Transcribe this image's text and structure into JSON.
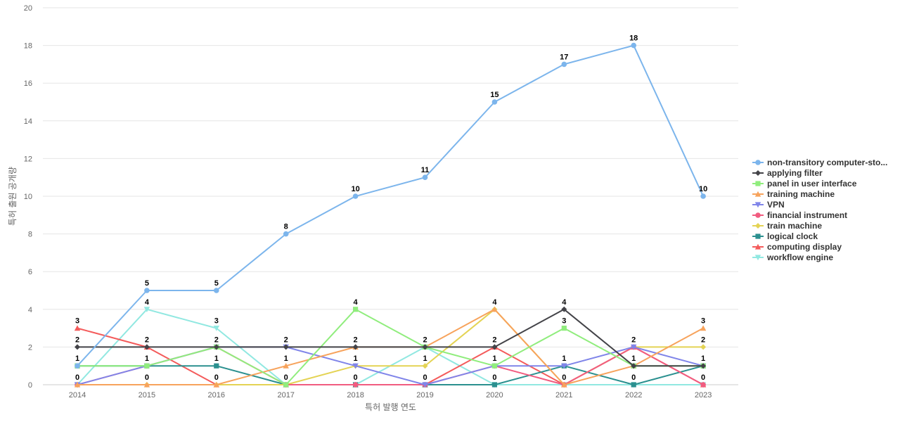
{
  "chart_data": {
    "type": "line",
    "xlabel": "특허 발행 연도",
    "ylabel": "특허 출원 공개량",
    "ylim": [
      0,
      20
    ],
    "y_ticks": [
      0,
      2,
      4,
      6,
      8,
      10,
      12,
      14,
      16,
      18,
      20
    ],
    "x": [
      "2014",
      "2015",
      "2016",
      "2017",
      "2018",
      "2019",
      "2020",
      "2021",
      "2022",
      "2023"
    ],
    "grid": true,
    "legend_position": "right",
    "series": [
      {
        "name": "non-transitory computer-sto...",
        "color": "#7cb5ec",
        "marker": "circle",
        "values": [
          1,
          5,
          5,
          8,
          10,
          11,
          15,
          17,
          18,
          10
        ]
      },
      {
        "name": "applying filter",
        "color": "#434348",
        "marker": "diamond",
        "values": [
          2,
          2,
          2,
          2,
          2,
          2,
          2,
          4,
          1,
          1
        ]
      },
      {
        "name": "panel in user interface",
        "color": "#90ed7d",
        "marker": "square",
        "values": [
          1,
          1,
          2,
          0,
          4,
          2,
          1,
          3,
          1,
          1
        ]
      },
      {
        "name": "training machine",
        "color": "#f7a35c",
        "marker": "triangle",
        "values": [
          0,
          0,
          0,
          1,
          2,
          2,
          4,
          0,
          1,
          3
        ]
      },
      {
        "name": "VPN",
        "color": "#8085e9",
        "marker": "triangle-down",
        "values": [
          0,
          1,
          2,
          2,
          1,
          0,
          1,
          1,
          2,
          1
        ]
      },
      {
        "name": "financial instrument",
        "color": "#f15c80",
        "marker": "circle",
        "values": [
          0,
          1,
          2,
          0,
          0,
          0,
          1,
          0,
          2,
          0
        ]
      },
      {
        "name": "train machine",
        "color": "#e4d354",
        "marker": "diamond",
        "values": [
          0,
          0,
          0,
          0,
          1,
          1,
          4,
          0,
          2,
          2
        ]
      },
      {
        "name": "logical clock",
        "color": "#2b908f",
        "marker": "square",
        "values": [
          1,
          1,
          1,
          0,
          0,
          0,
          0,
          1,
          0,
          1
        ]
      },
      {
        "name": "computing display",
        "color": "#f45b5b",
        "marker": "triangle",
        "values": [
          3,
          2,
          0,
          0,
          0,
          0,
          2,
          0,
          2,
          0
        ]
      },
      {
        "name": "workflow engine",
        "color": "#91e8e1",
        "marker": "triangle-down",
        "values": [
          0,
          4,
          3,
          0,
          0,
          2,
          0,
          0,
          0,
          0
        ]
      }
    ],
    "data_labels": [
      {
        "x": "2014",
        "values": [
          3,
          2,
          1,
          0
        ]
      },
      {
        "x": "2015",
        "values": [
          5,
          4,
          2,
          1,
          0
        ]
      },
      {
        "x": "2016",
        "values": [
          5,
          3,
          2,
          1,
          0
        ]
      },
      {
        "x": "2017",
        "values": [
          8,
          2,
          1,
          0
        ]
      },
      {
        "x": "2018",
        "values": [
          10,
          4,
          2,
          1,
          0
        ]
      },
      {
        "x": "2019",
        "values": [
          11,
          2,
          1,
          0
        ]
      },
      {
        "x": "2020",
        "values": [
          15,
          4,
          2,
          1,
          0
        ]
      },
      {
        "x": "2021",
        "values": [
          17,
          4,
          3,
          1,
          0
        ]
      },
      {
        "x": "2022",
        "values": [
          18,
          2,
          1,
          0
        ]
      },
      {
        "x": "2023",
        "values": [
          10,
          3,
          2,
          1,
          0
        ]
      }
    ]
  }
}
